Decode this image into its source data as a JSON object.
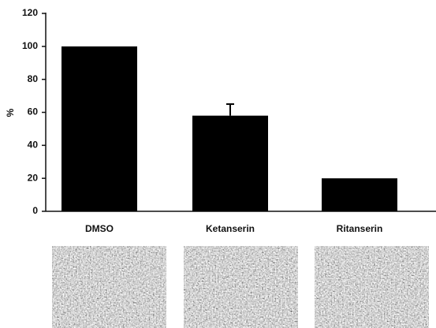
{
  "chart_data": {
    "type": "bar",
    "y_label": "%",
    "categories": [
      "DMSO",
      "Ketanserin",
      "Ritanserin"
    ],
    "values": [
      100,
      58,
      20
    ],
    "errors": [
      null,
      7,
      null
    ],
    "color": "#000000",
    "ylim": [
      0,
      120
    ],
    "yticks": [
      0,
      20,
      40,
      60,
      80,
      100,
      120
    ],
    "grid": false
  }
}
